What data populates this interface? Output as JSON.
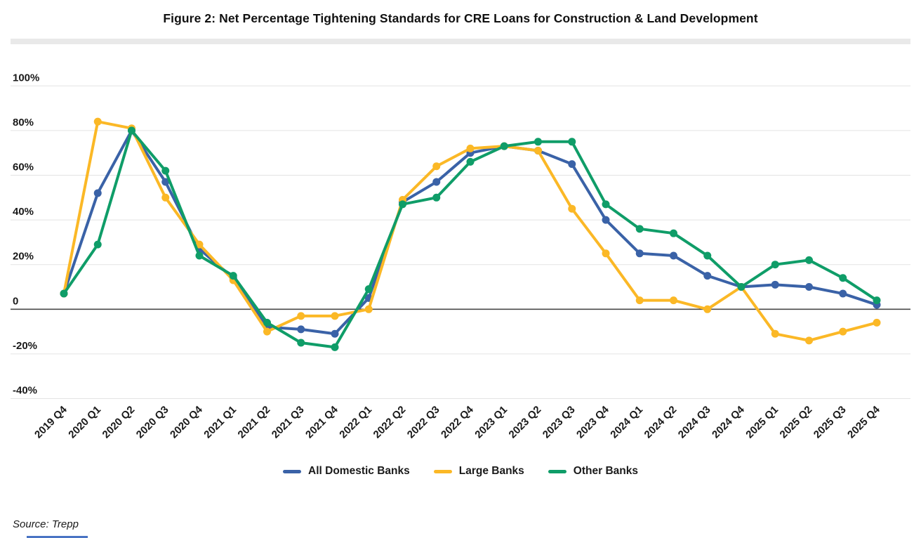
{
  "title": "Figure 2: Net Percentage Tightening Standards for CRE Loans for Construction & Land Development",
  "source_note": "Source: Trepp",
  "chart_data": {
    "type": "line",
    "title": "Figure 2: Net Percentage Tightening Standards for CRE Loans for Construction & Land Development",
    "xlabel": "",
    "ylabel": "",
    "ylim": [
      -45,
      105
    ],
    "grid": true,
    "legend_position": "bottom",
    "categories": [
      "2019 Q4",
      "2020 Q1",
      "2020 Q2",
      "2020 Q3",
      "2020 Q4",
      "2021 Q1",
      "2021 Q2",
      "2021 Q3",
      "2021 Q4",
      "2022 Q1",
      "2022 Q2",
      "2022 Q3",
      "2022 Q4",
      "2023 Q1",
      "2023 Q2",
      "2023 Q3",
      "2023 Q4",
      "2024 Q1",
      "2024 Q2",
      "2024 Q3",
      "2024 Q4",
      "2025 Q1",
      "2025 Q2",
      "2025 Q3",
      "2025 Q4"
    ],
    "yticks": [
      {
        "value": 100,
        "label": "100%"
      },
      {
        "value": 80,
        "label": "80%"
      },
      {
        "value": 60,
        "label": "60%"
      },
      {
        "value": 40,
        "label": "40%"
      },
      {
        "value": 20,
        "label": "20%"
      },
      {
        "value": 0,
        "label": "0"
      },
      {
        "value": -20,
        "label": "-20%"
      },
      {
        "value": -40,
        "label": "-40%"
      }
    ],
    "series": [
      {
        "name": "All Domestic Banks",
        "color": "#3a62a7",
        "values": [
          7,
          52,
          80,
          57,
          27,
          14,
          -8,
          -9,
          -11,
          5,
          48,
          57,
          70,
          73,
          71,
          65,
          40,
          25,
          24,
          15,
          10,
          11,
          10,
          7,
          2
        ]
      },
      {
        "name": "Large Banks",
        "color": "#fbb826",
        "values": [
          7,
          84,
          81,
          50,
          29,
          13,
          -10,
          -3,
          -3,
          0,
          49,
          64,
          72,
          73,
          71,
          45,
          25,
          4,
          4,
          0,
          10,
          -11,
          -14,
          -10,
          -6
        ]
      },
      {
        "name": "Other Banks",
        "color": "#0f9d68",
        "values": [
          7,
          29,
          80,
          62,
          24,
          15,
          -6,
          -15,
          -17,
          9,
          47,
          50,
          66,
          73,
          75,
          75,
          47,
          36,
          34,
          24,
          10,
          20,
          22,
          14,
          4
        ]
      }
    ]
  }
}
